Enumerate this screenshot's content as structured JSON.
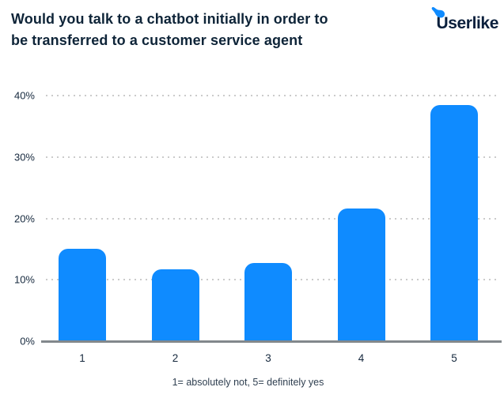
{
  "header": {
    "title_lines": [
      "Would you talk to a chatbot initially in order to",
      "be transferred to a customer service agent"
    ],
    "logo_text": "Userlike"
  },
  "chart_data": {
    "type": "bar",
    "title": "Would you talk to a chatbot initially in order to be transferred to a customer service agent",
    "categories": [
      "1",
      "2",
      "3",
      "4",
      "5"
    ],
    "values": [
      15.1,
      11.7,
      12.7,
      21.6,
      38.4
    ],
    "unit": "%",
    "xlabel": "1= absolutely not, 5= definitely yes",
    "ylabel": "",
    "ylim": [
      0,
      40
    ],
    "yticks": [
      {
        "label": "0%",
        "value": 0
      },
      {
        "label": "10%",
        "value": 10
      },
      {
        "label": "20%",
        "value": 20
      },
      {
        "label": "30%",
        "value": 30
      },
      {
        "label": "40%",
        "value": 40
      }
    ],
    "grid": "dotted-horizontal",
    "legend": "none",
    "bar_color": "#0f8bff"
  },
  "footer": {
    "caption": "1= absolutely not, 5= definitely yes"
  },
  "colors": {
    "background": "#ffffff",
    "bar": "#0f8bff",
    "title_text": "#0e2438",
    "axis_text": "#16293e",
    "caption_text": "#2f3f50",
    "gridline": "#cbcbcb",
    "baseline": "#82888c",
    "logo_text": "#0a1f3c",
    "logo_accent": "#0f8bff"
  }
}
